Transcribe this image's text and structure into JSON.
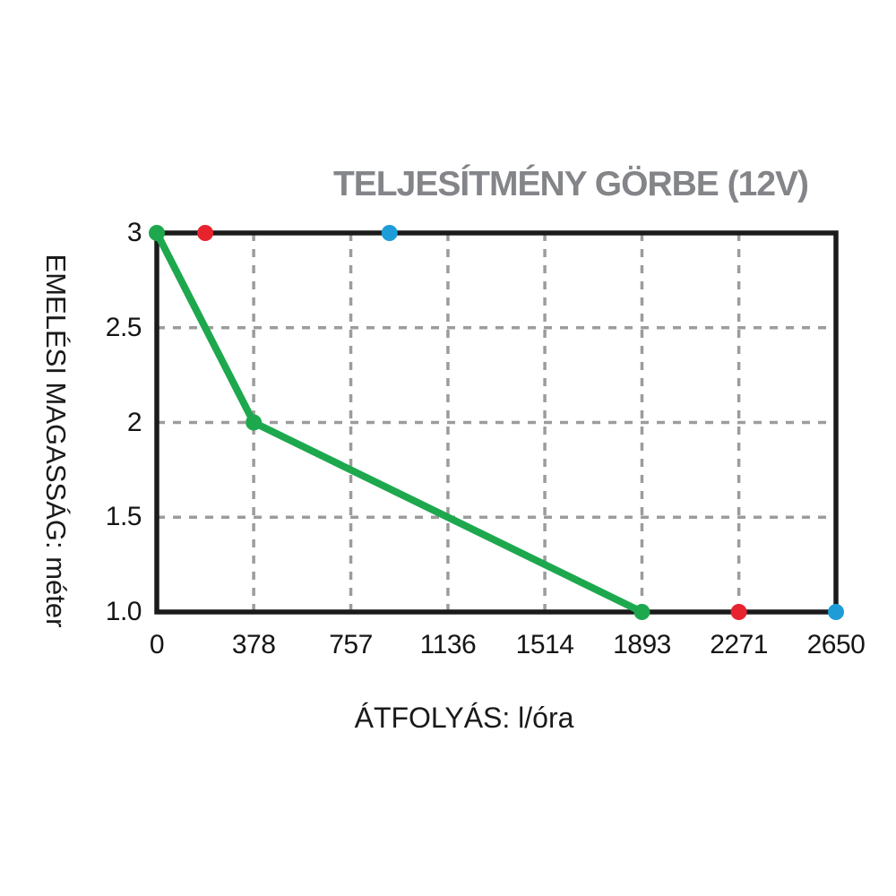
{
  "title": "TELJESÍTMÉNY GÖRBE (12V)",
  "axes": {
    "x_label": "ÁTFOLYÁS: l/óra",
    "y_label": "EMELÉSI MAGASSÁG: méter"
  },
  "chart_data": {
    "type": "line",
    "title": "TELJESÍTMÉNY GÖRBE (12V)",
    "xlabel": "ÁTFOLYÁS: l/óra",
    "ylabel": "EMELÉSI MAGASSÁG: méter",
    "xlim": [
      0,
      2650
    ],
    "ylim": [
      1.0,
      3.0
    ],
    "x_ticks": [
      "0",
      "378",
      "757",
      "1136",
      "1514",
      "1893",
      "2271",
      "2650"
    ],
    "y_ticks": [
      "3",
      "2.5",
      "2",
      "1.5",
      "1.0"
    ],
    "grid": "dashed interior gridlines, thick black outer frame",
    "legend": "none",
    "series": [
      {
        "name": "performance-curve",
        "type": "line",
        "color": "#1ea84e",
        "points": [
          [
            0,
            3
          ],
          [
            378,
            2
          ],
          [
            1893,
            1
          ]
        ]
      },
      {
        "name": "red-markers",
        "type": "scatter",
        "color": "#e8232d",
        "points": [
          [
            189,
            3
          ],
          [
            2271,
            1
          ]
        ]
      },
      {
        "name": "blue-markers",
        "type": "scatter",
        "color": "#1e9cd8",
        "points": [
          [
            908,
            3
          ],
          [
            2650,
            1
          ]
        ]
      }
    ]
  },
  "colors": {
    "background": "#ffffff",
    "title_text": "#838588",
    "axis_text": "#1a1a1a",
    "tick_text": "#151515",
    "plot_border": "#1b1b1b",
    "gridline": "#9c9c9c",
    "curve_green": "#1ea84e",
    "marker_red": "#e8232d",
    "marker_blue": "#1e9cd8"
  }
}
